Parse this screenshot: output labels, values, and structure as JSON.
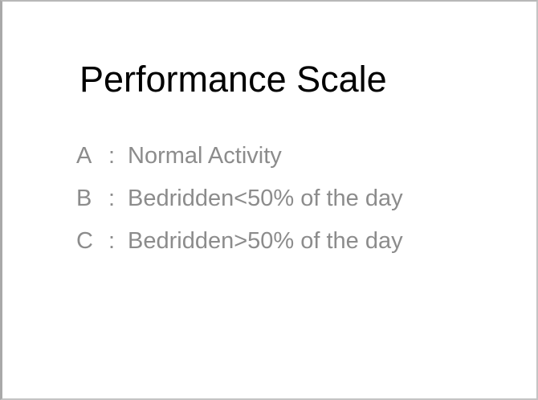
{
  "slide": {
    "title": "Performance Scale",
    "items": [
      {
        "grade": "A",
        "separator": ":",
        "description": "Normal Activity"
      },
      {
        "grade": "B",
        "separator": ":",
        "description": "Bedridden<50% of the day"
      },
      {
        "grade": "C",
        "separator": ":",
        "description": "Bedridden>50% of the day"
      }
    ]
  },
  "colors": {
    "background": "#ffffff",
    "title_text": "#000000",
    "body_text": "#8c8c8c",
    "frame_border": "#b8b8b8"
  }
}
